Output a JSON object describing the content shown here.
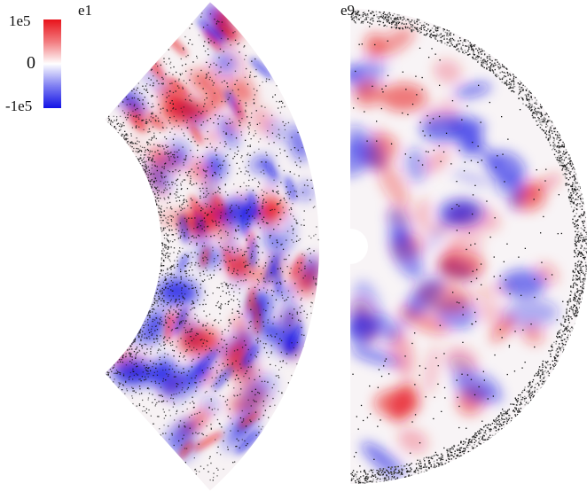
{
  "panels": [
    {
      "label": "e1"
    },
    {
      "label": "e9"
    }
  ],
  "colorbar": {
    "ticks": [
      "1e5",
      "0",
      "-1e5"
    ],
    "colors": {
      "max": "#e8121a",
      "mid": "#ffffff",
      "min": "#1212e6"
    }
  }
}
